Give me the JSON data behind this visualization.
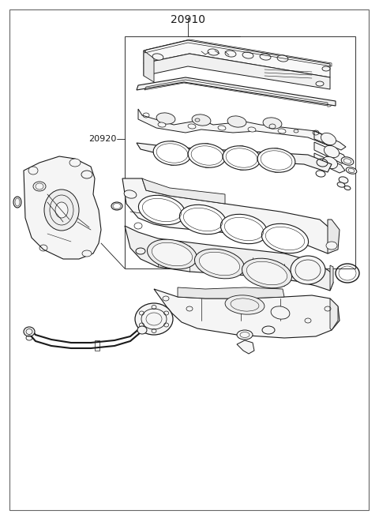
{
  "title": "20910",
  "label_20920": "20920",
  "bg_color": "#ffffff",
  "line_color": "#1a1a1a",
  "border_color": "#555555",
  "font_size_title": 10,
  "font_size_label": 8,
  "fig_width": 4.8,
  "fig_height": 6.56,
  "dpi": 100
}
